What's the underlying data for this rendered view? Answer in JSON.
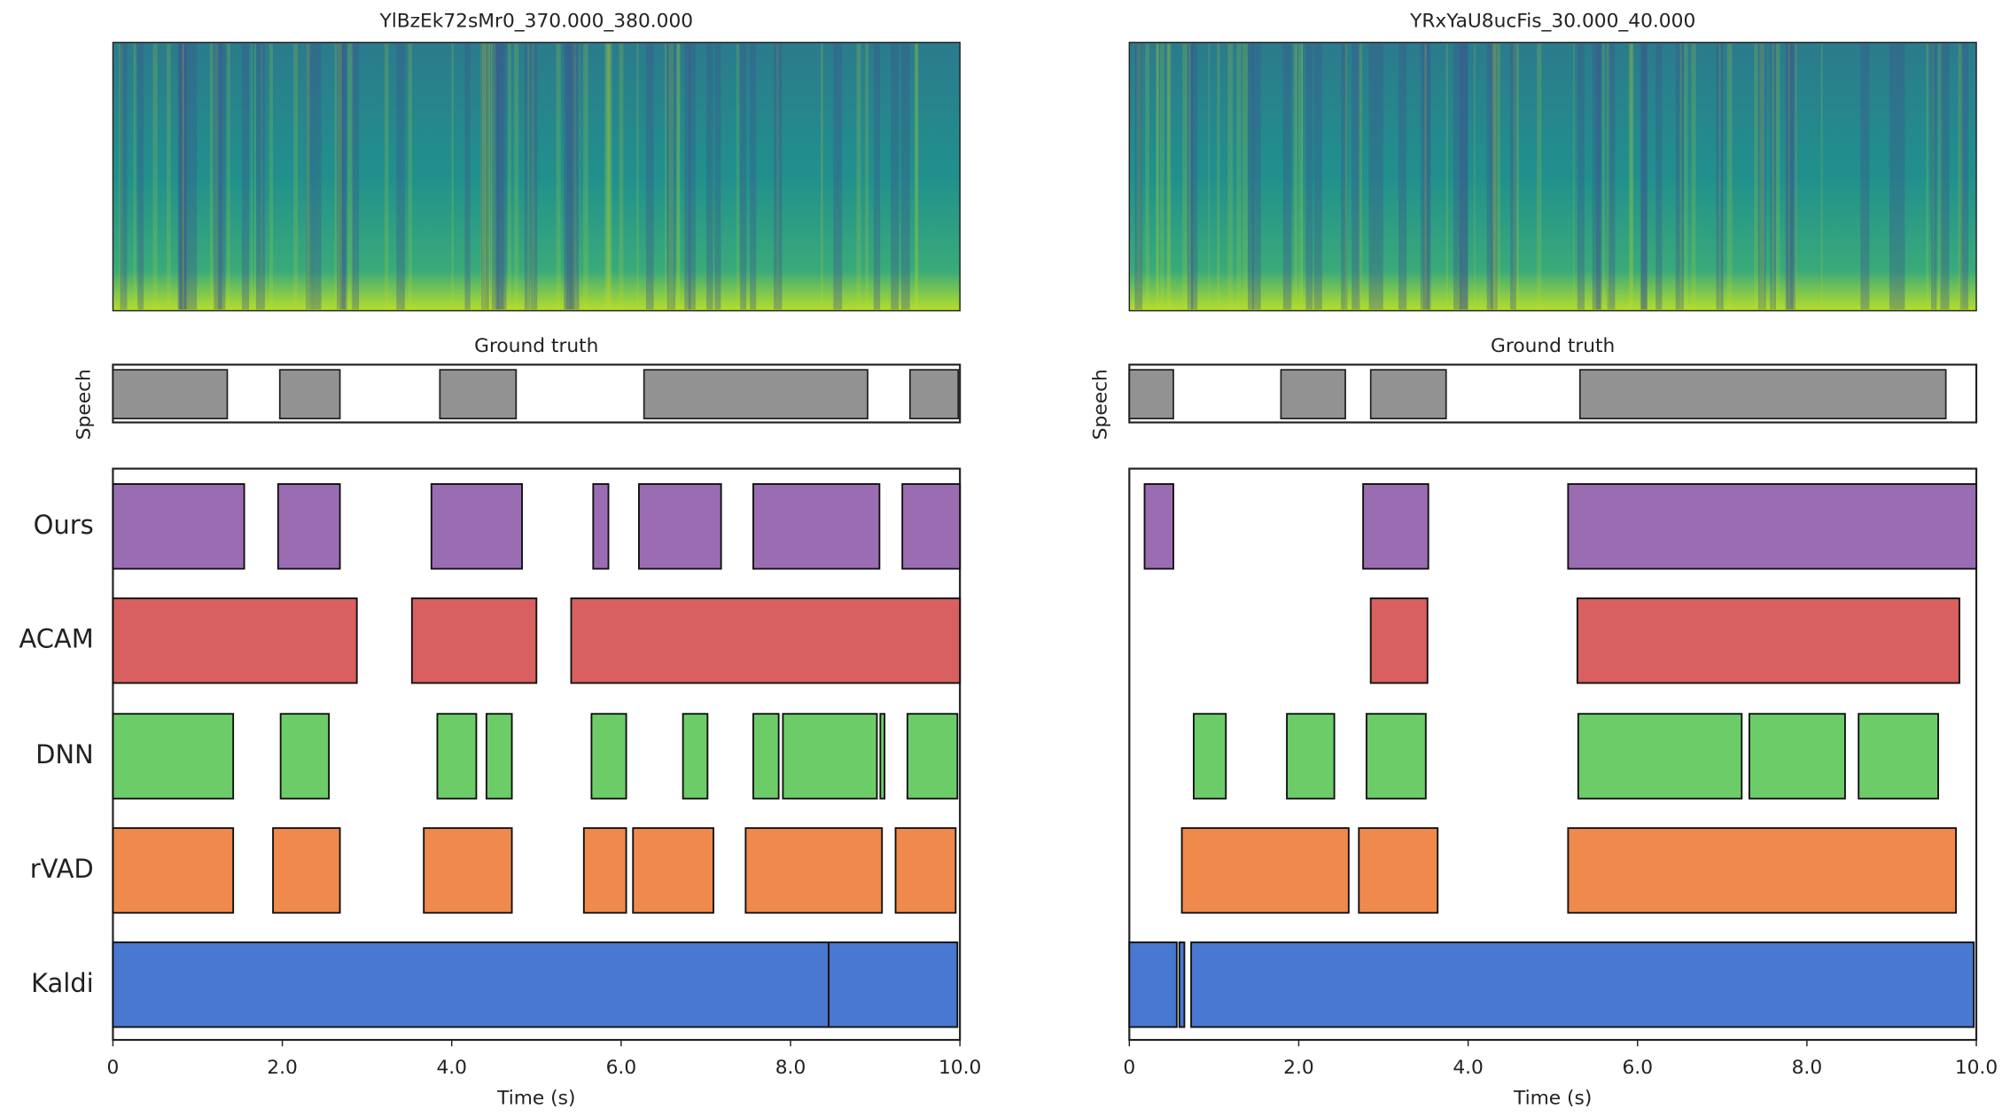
{
  "chart_data": {
    "type": "broken_bar",
    "xlabel": "Time (s)",
    "xlim": [
      0,
      10
    ],
    "xticks": [
      0,
      {
        "value": 2,
        "label": "2.0"
      },
      {
        "value": 4,
        "label": "4.0"
      },
      {
        "value": 6,
        "label": "6.0"
      },
      {
        "value": 8,
        "label": "8.0"
      },
      {
        "value": 10,
        "label": "10.0"
      }
    ],
    "gt_title": "Ground truth",
    "gt_ylabel": "Speech",
    "gt_color": "#929292",
    "series": [
      {
        "name": "Ours",
        "color": "#9a6db3"
      },
      {
        "name": "ACAM",
        "color": "#d86060"
      },
      {
        "name": "DNN",
        "color": "#6ccd68"
      },
      {
        "name": "rVAD",
        "color": "#ef8a4c"
      },
      {
        "name": "Kaldi",
        "color": "#4878cf"
      }
    ],
    "panels": [
      {
        "title": "YlBzEk72sMr0_370.000_380.000",
        "ground_truth": [
          [
            0,
            1.35
          ],
          [
            1.97,
            2.68
          ],
          [
            3.86,
            4.76
          ],
          [
            6.27,
            8.91
          ],
          [
            9.41,
            9.98
          ]
        ],
        "segments": [
          [
            [
              0,
              1.55
            ],
            [
              1.95,
              2.68
            ],
            [
              3.76,
              4.83
            ],
            [
              5.67,
              5.85
            ],
            [
              6.21,
              7.18
            ],
            [
              7.56,
              9.05
            ],
            [
              9.32,
              10
            ]
          ],
          [
            [
              0,
              2.88
            ],
            [
              3.53,
              5.0
            ],
            [
              5.41,
              10
            ]
          ],
          [
            [
              0,
              1.42
            ],
            [
              1.98,
              2.55
            ],
            [
              3.83,
              4.29
            ],
            [
              4.41,
              4.71
            ],
            [
              5.65,
              6.06
            ],
            [
              6.73,
              7.02
            ],
            [
              7.56,
              7.86
            ],
            [
              7.91,
              9.02
            ],
            [
              9.06,
              9.11
            ],
            [
              9.38,
              9.97
            ]
          ],
          [
            [
              0,
              1.42
            ],
            [
              1.89,
              2.68
            ],
            [
              3.67,
              4.71
            ],
            [
              5.56,
              6.06
            ],
            [
              6.14,
              7.09
            ],
            [
              7.47,
              9.08
            ],
            [
              9.24,
              9.95
            ]
          ],
          [
            [
              0,
              8.45
            ],
            [
              8.45,
              9.97
            ]
          ]
        ]
      },
      {
        "title": "YRxYaU8ucFis_30.000_40.000",
        "ground_truth": [
          [
            0,
            0.52
          ],
          [
            1.79,
            2.55
          ],
          [
            2.85,
            3.74
          ],
          [
            5.32,
            9.64
          ]
        ],
        "segments": [
          [
            [
              0.18,
              0.52
            ],
            [
              2.76,
              3.53
            ],
            [
              5.18,
              10
            ]
          ],
          [
            [
              2.85,
              3.52
            ],
            [
              5.29,
              9.8
            ]
          ],
          [
            [
              0.76,
              1.14
            ],
            [
              1.86,
              2.42
            ],
            [
              2.8,
              3.5
            ],
            [
              5.3,
              7.23
            ],
            [
              7.32,
              8.45
            ],
            [
              8.61,
              9.55
            ]
          ],
          [
            [
              0.62,
              2.59
            ],
            [
              2.71,
              3.64
            ],
            [
              5.18,
              9.76
            ]
          ],
          [
            [
              0,
              0.56
            ],
            [
              0.59,
              0.65
            ],
            [
              0.73,
              9.97
            ]
          ]
        ]
      }
    ]
  }
}
